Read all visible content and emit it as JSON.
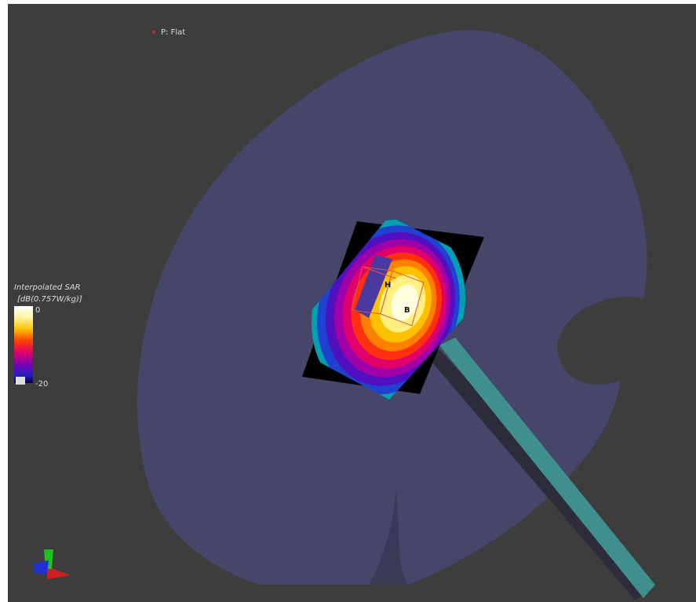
{
  "viewer": {
    "mode_label": "P: Flat"
  },
  "legend": {
    "title": "Interpolated SAR",
    "unit": "[dB(0.757W/kg)]",
    "top_label": "0",
    "bottom_label": "-20"
  },
  "markers": {
    "a": "H",
    "b": "B"
  }
}
